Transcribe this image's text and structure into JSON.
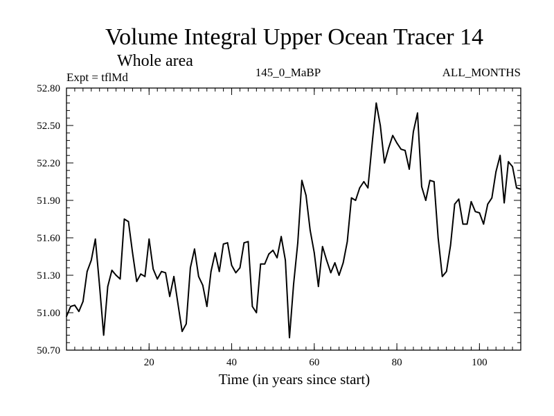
{
  "chart_data": {
    "type": "line",
    "title": "Volume Integral Upper Ocean Tracer 14",
    "subtitle": "Whole area",
    "expt_label": "Expt = tflMd",
    "run_label": "145_0_MaBP",
    "months_label": "ALL_MONTHS",
    "xlabel": "Time (in years since start)",
    "ylabel": "",
    "xlim": [
      0,
      110
    ],
    "ylim": [
      50.7,
      52.8
    ],
    "x_ticks": [
      20,
      40,
      60,
      80,
      100
    ],
    "x_tick_labels": [
      "20",
      "40",
      "60",
      "80",
      "100"
    ],
    "y_ticks": [
      50.7,
      51.0,
      51.3,
      51.6,
      51.9,
      52.2,
      52.5,
      52.8
    ],
    "y_tick_labels": [
      "50.70",
      "51.00",
      "51.30",
      "51.60",
      "51.90",
      "52.20",
      "52.50",
      "52.80"
    ],
    "x_minor_step": 2,
    "y_minor_step": 0.06,
    "line_color": "#000000",
    "series": [
      {
        "name": "Tracer 14",
        "x": [
          0,
          1,
          2,
          3,
          4,
          5,
          6,
          7,
          8,
          9,
          10,
          11,
          12,
          13,
          14,
          15,
          16,
          17,
          18,
          19,
          20,
          21,
          22,
          23,
          24,
          25,
          26,
          27,
          28,
          29,
          30,
          31,
          32,
          33,
          34,
          35,
          36,
          37,
          38,
          39,
          40,
          41,
          42,
          43,
          44,
          45,
          46,
          47,
          48,
          49,
          50,
          51,
          52,
          53,
          54,
          55,
          56,
          57,
          58,
          59,
          60,
          61,
          62,
          63,
          64,
          65,
          66,
          67,
          68,
          69,
          70,
          71,
          72,
          73,
          74,
          75,
          76,
          77,
          78,
          79,
          80,
          81,
          82,
          83,
          84,
          85,
          86,
          87,
          88,
          89,
          90,
          91,
          92,
          93,
          94,
          95,
          96,
          97,
          98,
          99,
          100,
          101,
          102,
          103,
          104,
          105,
          106,
          107,
          108,
          109,
          110
        ],
        "values": [
          50.97,
          51.05,
          51.06,
          51.01,
          51.09,
          51.33,
          51.42,
          51.59,
          51.22,
          50.82,
          51.21,
          51.34,
          51.3,
          51.27,
          51.75,
          51.73,
          51.48,
          51.25,
          51.31,
          51.29,
          51.59,
          51.35,
          51.27,
          51.33,
          51.32,
          51.13,
          51.29,
          51.07,
          50.85,
          50.91,
          51.36,
          51.51,
          51.29,
          51.22,
          51.05,
          51.33,
          51.48,
          51.33,
          51.55,
          51.56,
          51.38,
          51.32,
          51.36,
          51.56,
          51.57,
          51.05,
          51.0,
          51.39,
          51.39,
          51.47,
          51.5,
          51.44,
          51.61,
          51.42,
          50.8,
          51.23,
          51.56,
          52.06,
          51.94,
          51.66,
          51.48,
          51.21,
          51.53,
          51.42,
          51.32,
          51.4,
          51.3,
          51.4,
          51.57,
          51.92,
          51.9,
          52.0,
          52.05,
          52.0,
          52.35,
          52.68,
          52.5,
          52.2,
          52.32,
          52.42,
          52.36,
          52.31,
          52.3,
          52.15,
          52.45,
          52.6,
          52.01,
          51.9,
          52.06,
          52.05,
          51.6,
          51.29,
          51.33,
          51.54,
          51.87,
          51.91,
          51.71,
          51.71,
          51.89,
          51.81,
          51.8,
          51.71,
          51.87,
          51.92,
          52.13,
          52.26,
          51.88,
          52.21,
          52.17,
          52.0,
          51.99
        ]
      }
    ]
  }
}
